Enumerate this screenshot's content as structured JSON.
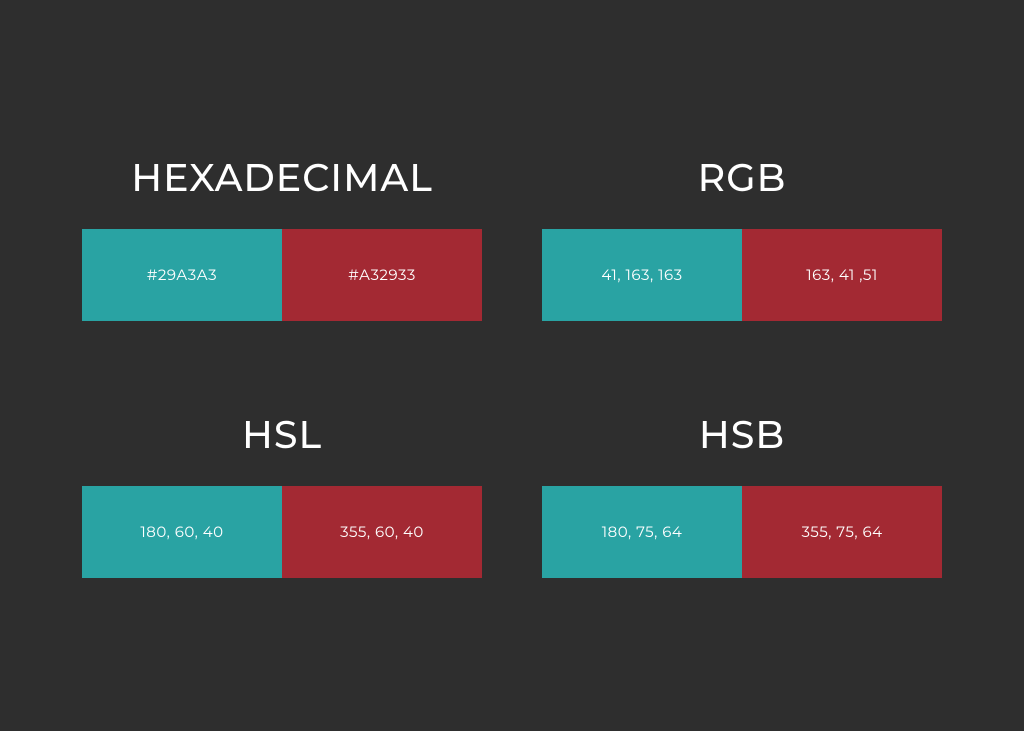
{
  "background_color": "#2e2e2e",
  "text_color": "#ffffff",
  "title_fontsize": 38,
  "value_fontsize": 15,
  "swatch_height": 92,
  "panels": {
    "hex": {
      "title": "HEXADECIMAL",
      "left": {
        "bg": "#29a3a3",
        "label": "#29A3A3"
      },
      "right": {
        "bg": "#a32933",
        "label": "#A32933"
      }
    },
    "rgb": {
      "title": "RGB",
      "left": {
        "bg": "#29a3a3",
        "label": "41, 163, 163"
      },
      "right": {
        "bg": "#a32933",
        "label": "163, 41 ,51"
      }
    },
    "hsl": {
      "title": "HSL",
      "left": {
        "bg": "#29a3a3",
        "label": "180, 60, 40"
      },
      "right": {
        "bg": "#a32933",
        "label": "355, 60, 40"
      }
    },
    "hsb": {
      "title": "HSB",
      "left": {
        "bg": "#29a3a3",
        "label": "180, 75, 64"
      },
      "right": {
        "bg": "#a32933",
        "label": "355, 75, 64"
      }
    }
  }
}
